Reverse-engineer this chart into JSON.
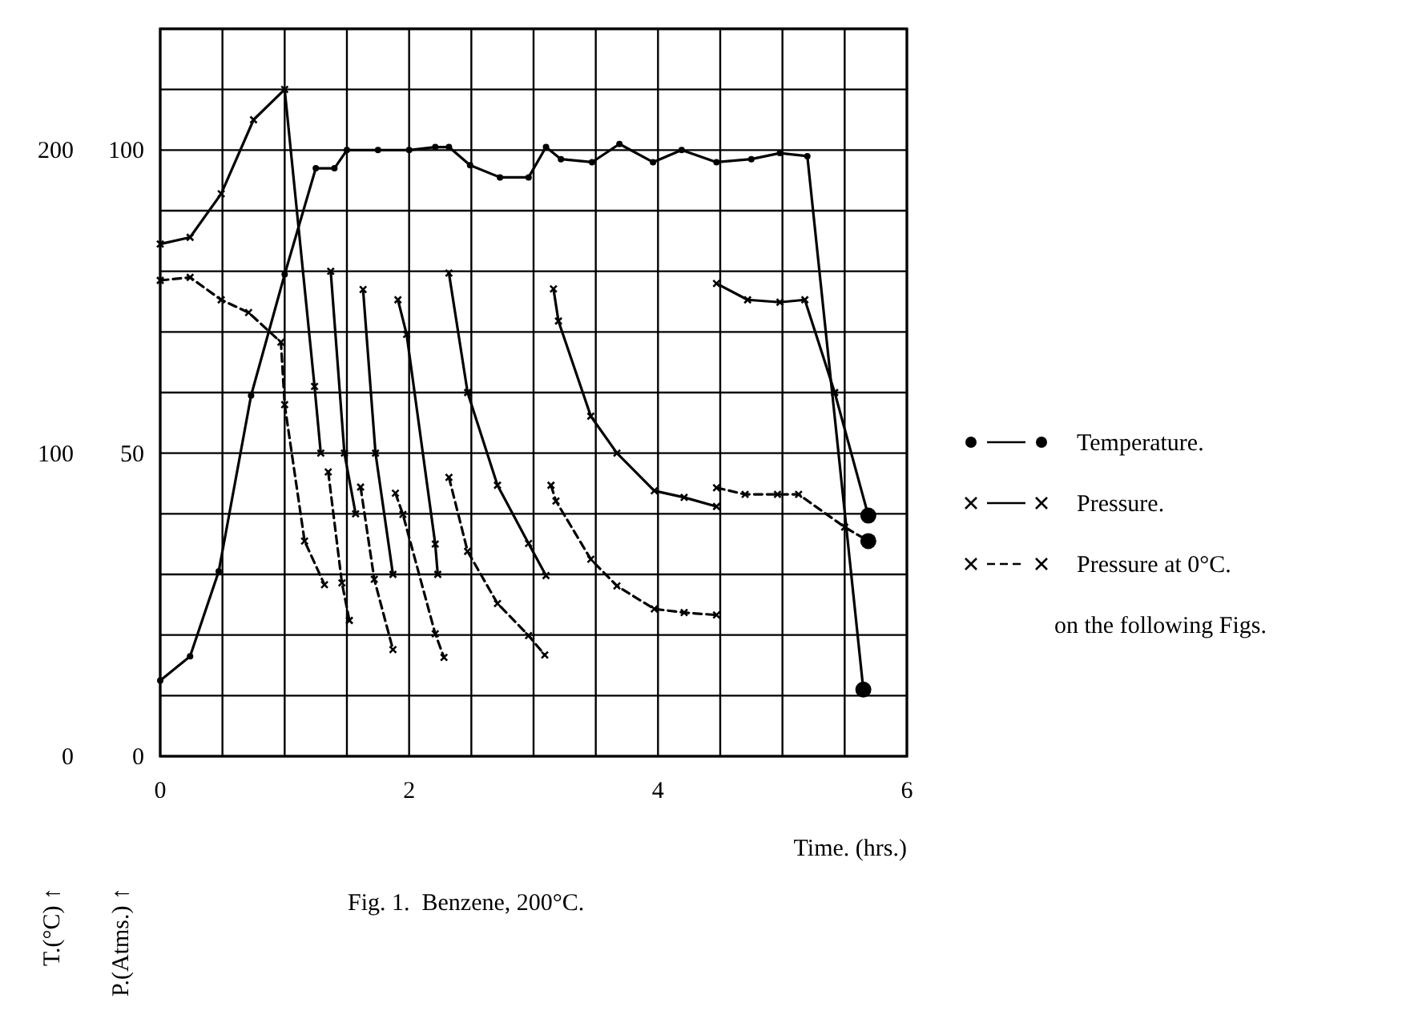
{
  "chart_data": {
    "type": "line",
    "title": "Fig. 1.  Benzene, 200°C.",
    "xlabel": "Time. (hrs.)",
    "ylabel": "P.(Atms.) ↑",
    "y2label": "T.(°C) ↑",
    "xlim": [
      0,
      6
    ],
    "xticks": [
      0,
      {
        "value": 0.5,
        "label": null
      },
      {
        "value": 1,
        "label": null
      },
      {
        "value": 1.5,
        "label": null
      },
      2,
      {
        "value": 2.5,
        "label": null
      },
      {
        "value": 3,
        "label": null
      },
      {
        "value": 3.5,
        "label": null
      },
      4,
      {
        "value": 4.5,
        "label": null
      },
      {
        "value": 5,
        "label": null
      },
      {
        "value": 5.5,
        "label": null
      },
      6
    ],
    "ylim": [
      0,
      120
    ],
    "yticks": [
      0,
      {
        "value": 10,
        "label": null
      },
      {
        "value": 20,
        "label": null
      },
      {
        "value": 30,
        "label": null
      },
      {
        "value": 40,
        "label": null
      },
      50,
      {
        "value": 60,
        "label": null
      },
      {
        "value": 70,
        "label": null
      },
      {
        "value": 80,
        "label": null
      },
      {
        "value": 90,
        "label": null
      },
      100,
      {
        "value": 110,
        "label": null
      },
      {
        "value": 120,
        "label": null
      }
    ],
    "y2lim": [
      0,
      240
    ],
    "y2ticks": [
      0,
      100,
      200
    ],
    "grid": true,
    "legend": "right",
    "series": [
      {
        "name": "Temperature.",
        "color": "#000000",
        "axis": "y2",
        "marker": "circle",
        "line_style": "solid",
        "x": [
          0,
          0.24,
          0.47,
          0.73,
          1.0,
          1.25,
          1.4,
          1.5,
          1.75,
          2.0,
          2.21,
          2.32,
          2.49,
          2.73,
          2.96,
          3.1,
          3.22,
          3.47,
          3.69,
          3.96,
          4.19,
          4.47,
          4.75,
          4.98,
          5.2,
          5.65
        ],
        "values": [
          25,
          33,
          61,
          119,
          159,
          194,
          194,
          200,
          200,
          200,
          201,
          201,
          195,
          191,
          191,
          201,
          197,
          196,
          202,
          196,
          200,
          196,
          197,
          199,
          198,
          22
        ]
      },
      {
        "name": "Pressure.",
        "color": "#000000",
        "marker": "cross",
        "line_style": "solid",
        "x": [
          0,
          0.24,
          0.49,
          0.75,
          1.0,
          1.24,
          1.29,
          null,
          1.37,
          1.48,
          1.57,
          null,
          1.63,
          1.73,
          1.87,
          null,
          1.91,
          1.98,
          2.21,
          2.23,
          null,
          2.32,
          2.47,
          2.71,
          2.96,
          3.1,
          null,
          3.16,
          3.2,
          3.46,
          3.67,
          3.97,
          4.21,
          4.47,
          null,
          4.47,
          4.72,
          4.98,
          5.18,
          5.42,
          5.69
        ],
        "values": [
          84.5,
          85.6,
          92.8,
          105,
          110,
          61,
          50,
          null,
          80,
          50,
          40,
          null,
          77,
          50,
          30,
          null,
          75.3,
          69.6,
          35,
          30,
          null,
          79.7,
          60,
          44.7,
          35.1,
          29.8,
          null,
          77.1,
          71.8,
          56.1,
          50,
          43.8,
          42.7,
          41.2,
          null,
          78,
          75.3,
          74.9,
          75.3,
          60,
          39.7
        ]
      },
      {
        "name": "Pressure at 0°C.",
        "color": "#000000",
        "marker": "cross",
        "line_style": "dashed",
        "x": [
          0,
          0.24,
          0.49,
          0.71,
          0.97,
          1.0,
          1.16,
          1.32,
          null,
          1.35,
          1.46,
          1.52,
          null,
          1.61,
          1.72,
          1.87,
          null,
          1.89,
          1.95,
          2.21,
          2.28,
          null,
          2.32,
          2.47,
          2.71,
          2.96,
          3.09,
          null,
          3.14,
          3.18,
          3.46,
          3.67,
          3.97,
          4.21,
          4.47,
          null,
          4.47,
          4.7,
          4.96,
          5.13,
          5.5,
          5.69
        ],
        "values": [
          78.5,
          79,
          75.3,
          73.2,
          68.3,
          58,
          35.5,
          28.3,
          null,
          46.9,
          28.6,
          22.4,
          null,
          44.4,
          29.2,
          17.6,
          null,
          43.4,
          39.9,
          20.2,
          16.3,
          null,
          46,
          33.8,
          25.2,
          19.9,
          16.7,
          null,
          44.7,
          42.1,
          32.5,
          28.1,
          24.3,
          23.7,
          23.3,
          null,
          44.3,
          43.2,
          43.2,
          43.2,
          37.8,
          35.5
        ]
      }
    ],
    "annotations": [
      "on the following Figs."
    ]
  }
}
